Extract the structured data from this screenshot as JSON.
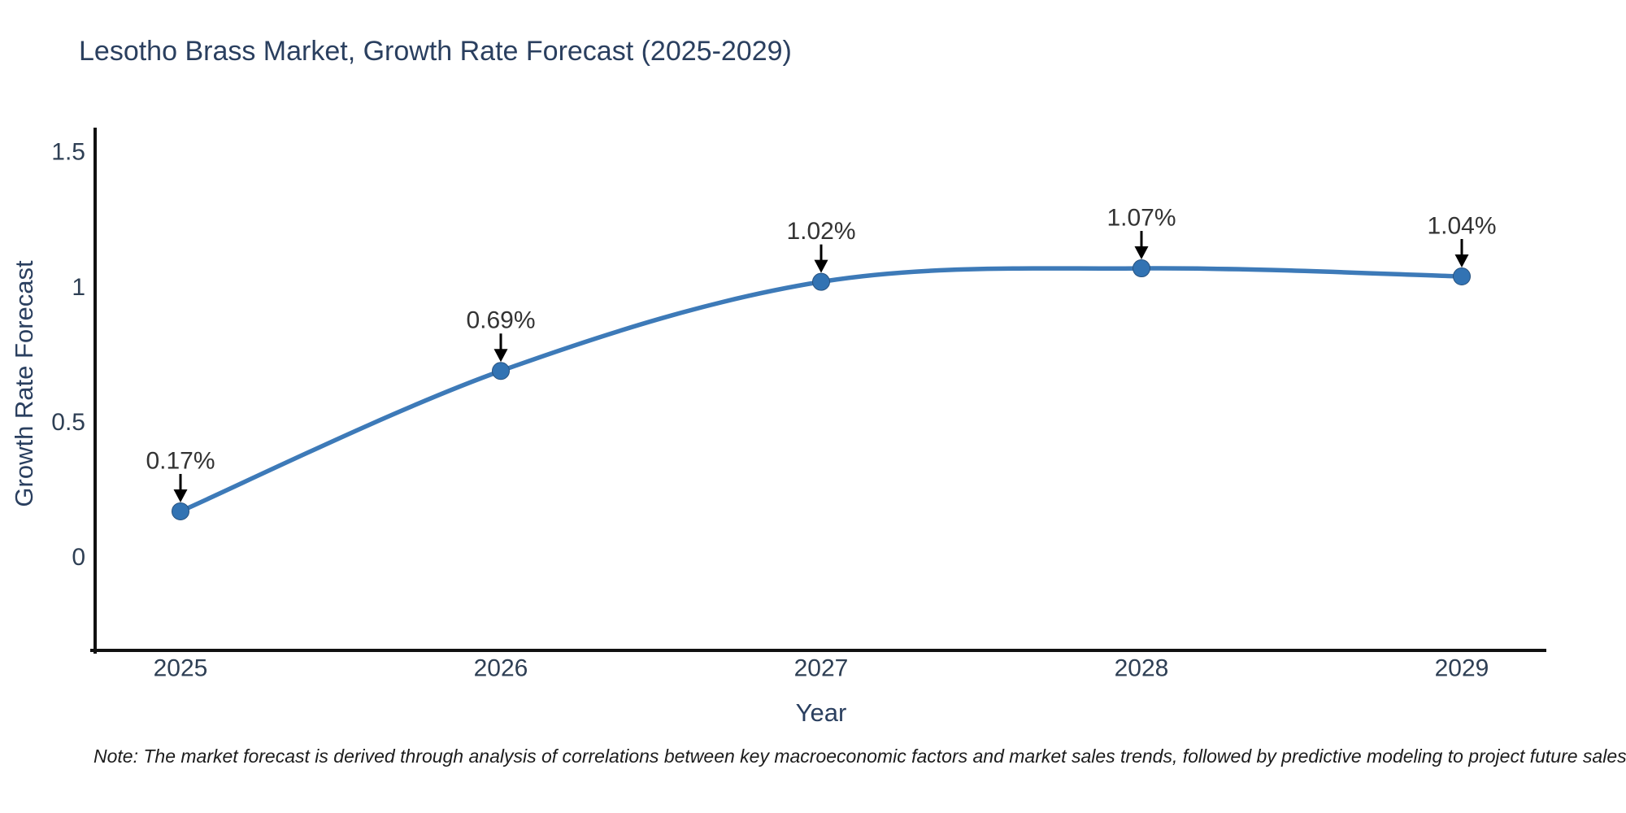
{
  "page": {
    "title": "Lesotho Brass Market, Growth Rate Forecast (2025-2029)",
    "note": "Note: The market forecast is derived through analysis of correlations between key macroeconomic factors and market sales trends, followed by predictive modeling to project future sales"
  },
  "chart_data": {
    "type": "line",
    "title": "Lesotho Brass Market, Growth Rate Forecast (2025-2029)",
    "xlabel": "Year",
    "ylabel": "Growth Rate Forecast",
    "x": [
      2025,
      2026,
      2027,
      2028,
      2029
    ],
    "series": [
      {
        "name": "Growth Rate Forecast",
        "values": [
          0.17,
          0.69,
          1.02,
          1.07,
          1.04
        ]
      }
    ],
    "point_labels": [
      "0.17%",
      "0.69%",
      "1.02%",
      "1.07%",
      "1.04%"
    ],
    "x_tick_labels": [
      "2025",
      "2026",
      "2027",
      "2028",
      "2029"
    ],
    "y_tick_values": [
      0,
      0.5,
      1,
      1.5
    ],
    "y_tick_labels": [
      "0",
      "0.5",
      "1",
      "1.5"
    ],
    "ylim": [
      -0.345,
      1.588
    ],
    "line_shape": "spline",
    "grid": false,
    "legend_position": "none",
    "colors": {
      "line": "#3d7ab8",
      "marker": "#3273b3",
      "marker_edge": "#27527f",
      "axis": "#111111",
      "tick_text": "#2e3f54",
      "title_text": "#2a3f5f",
      "annotation_text": "#333333",
      "arrow": "#000000",
      "background": "#ffffff"
    }
  }
}
